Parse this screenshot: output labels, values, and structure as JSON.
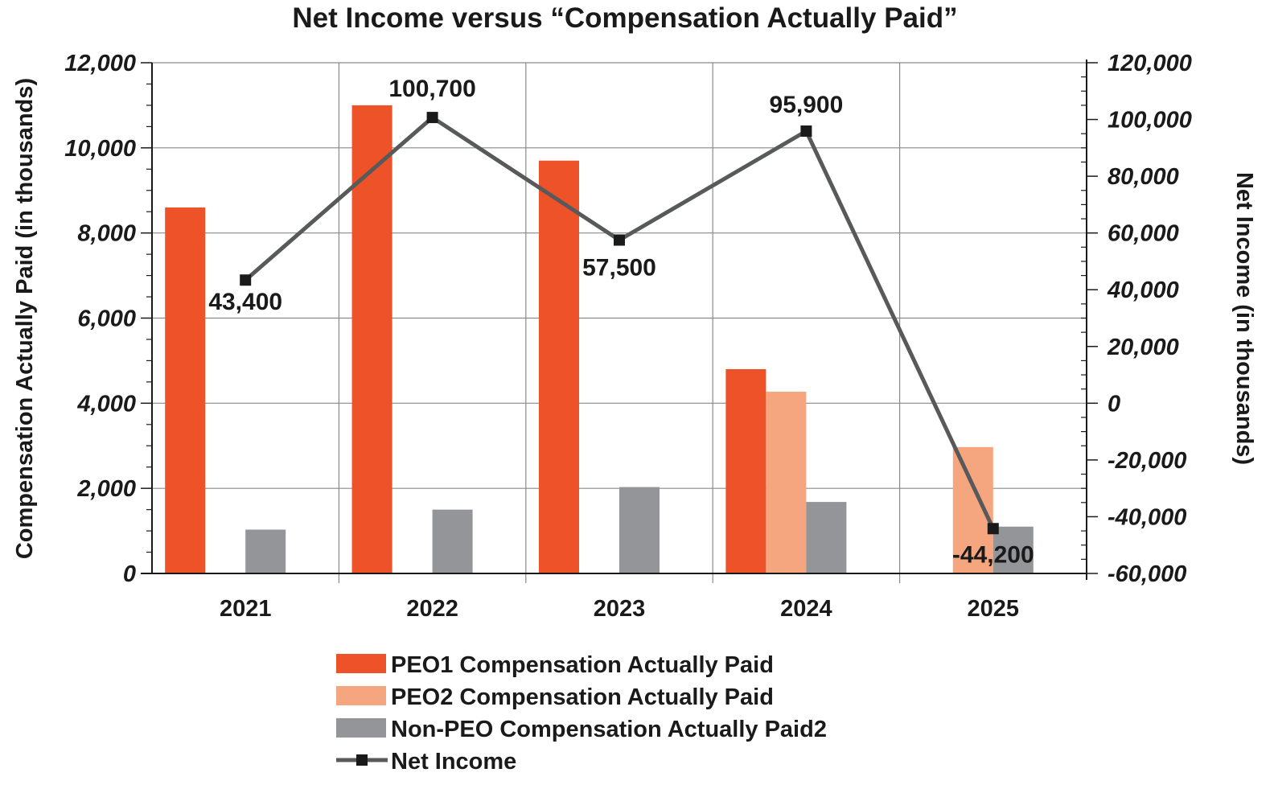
{
  "chart_data": {
    "type": "bar",
    "title": "Net Income versus “Compensation Actually Paid”",
    "categories": [
      "2021",
      "2022",
      "2023",
      "2024",
      "2025"
    ],
    "ylabel": "Compensation Actually Paid (in thousands)",
    "y2label": "Net Income (in thousands)",
    "ylim": [
      0,
      12000
    ],
    "y2lim": [
      -60000,
      120000
    ],
    "yticks": [
      "0",
      "2,000",
      "4,000",
      "6,000",
      "8,000",
      "10,000",
      "12,000"
    ],
    "y2ticks": [
      "-60,000",
      "-40,000",
      "-20,000",
      "0",
      "20,000",
      "40,000",
      "60,000",
      "80,000",
      "100,000",
      "120,000"
    ],
    "grid": true,
    "legend_position": "bottom",
    "series": [
      {
        "name": "PEO1 Compensation Actually Paid",
        "type": "bar",
        "axis": "left",
        "color": "#ee5229",
        "values": [
          8600,
          11000,
          9700,
          4800,
          null
        ]
      },
      {
        "name": "PEO2 Compensation Actually Paid",
        "type": "bar",
        "axis": "left",
        "color": "#f5a67f",
        "values": [
          null,
          null,
          null,
          4270,
          2970
        ]
      },
      {
        "name": "Non-PEO Compensation Actually Paid2",
        "type": "bar",
        "axis": "left",
        "color": "#939598",
        "values": [
          1030,
          1500,
          2030,
          1680,
          1100
        ]
      },
      {
        "name": "Net Income",
        "type": "line",
        "axis": "right",
        "color": "#58595b",
        "values": [
          43400,
          100700,
          57500,
          95900,
          -44200
        ],
        "labels": [
          "43,400",
          "100,700",
          "57,500",
          "95,900",
          "-44,200"
        ]
      }
    ]
  }
}
